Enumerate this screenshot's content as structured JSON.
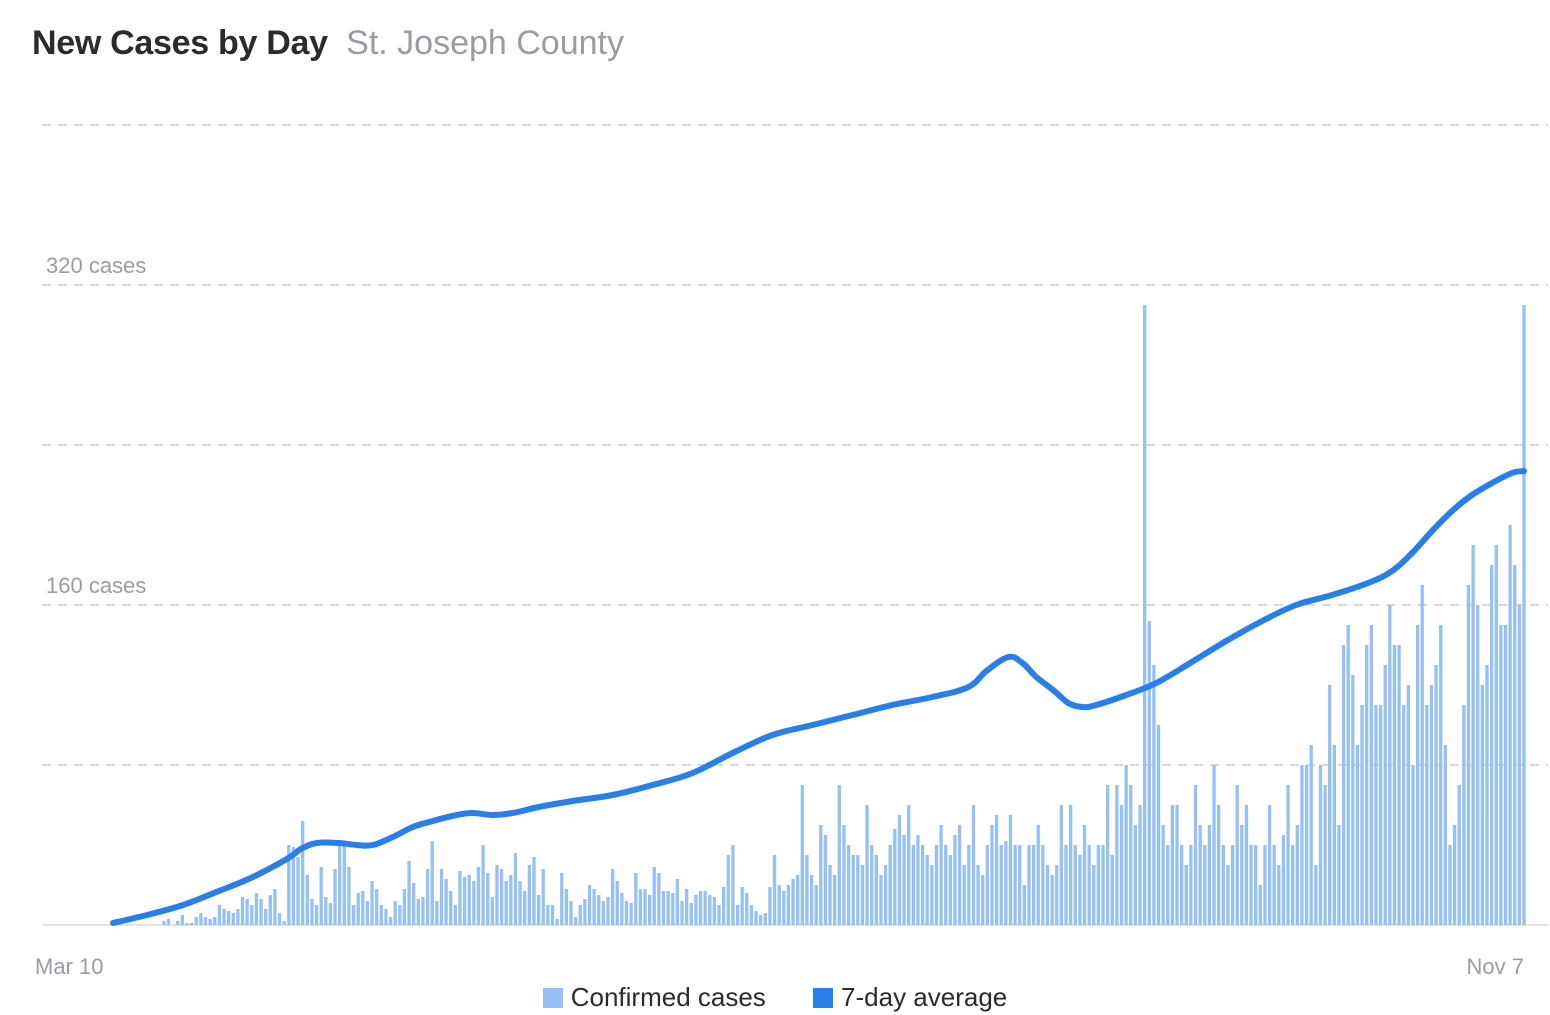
{
  "header": {
    "title": "New Cases by Day",
    "subtitle": "St. Joseph County"
  },
  "colors": {
    "bar": "#97c1f3",
    "line": "#2a7ee8",
    "grid": "#cccccc",
    "label": "#9a9ca3"
  },
  "chart_data": {
    "type": "bar",
    "title": "New Cases by Day",
    "subtitle": "St. Joseph County",
    "ylim": [
      0,
      400
    ],
    "y_ticks": [
      {
        "value": 0,
        "label": ""
      },
      {
        "value": 80,
        "label": ""
      },
      {
        "value": 160,
        "label": "160 cases"
      },
      {
        "value": 240,
        "label": ""
      },
      {
        "value": 320,
        "label": "320 cases"
      },
      {
        "value": 400,
        "label": ""
      }
    ],
    "x_start_label": "Mar 10",
    "x_end_label": "Nov 7",
    "grid": "horizontal dashed",
    "legend_position": "bottom",
    "series": [
      {
        "name": "Confirmed cases",
        "type": "bar",
        "values": [
          1,
          0,
          0,
          0,
          0,
          0,
          0,
          0,
          0,
          0,
          0,
          2,
          3,
          0,
          2,
          5,
          1,
          1,
          4,
          6,
          4,
          3,
          4,
          10,
          8,
          7,
          6,
          8,
          14,
          13,
          10,
          16,
          13,
          8,
          15,
          18,
          6,
          2,
          40,
          39,
          34,
          52,
          25,
          13,
          10,
          29,
          14,
          11,
          28,
          42,
          40,
          29,
          10,
          16,
          17,
          12,
          22,
          18,
          10,
          8,
          4,
          12,
          10,
          18,
          32,
          21,
          13,
          14,
          28,
          42,
          12,
          28,
          23,
          17,
          10,
          27,
          24,
          25,
          22,
          29,
          40,
          26,
          14,
          30,
          28,
          22,
          25,
          36,
          22,
          17,
          30,
          34,
          15,
          28,
          10,
          10,
          3,
          26,
          18,
          12,
          4,
          10,
          13,
          20,
          18,
          15,
          12,
          14,
          28,
          22,
          16,
          12,
          11,
          26,
          18,
          18,
          15,
          29,
          26,
          17,
          17,
          16,
          23,
          12,
          18,
          11,
          15,
          17,
          17,
          15,
          14,
          10,
          19,
          35,
          40,
          10,
          19,
          16,
          10,
          7,
          5,
          6,
          19,
          35,
          20,
          17,
          20,
          23,
          25,
          70,
          35,
          25,
          20,
          50,
          45,
          30,
          25,
          70,
          50,
          40,
          35,
          35,
          30,
          60,
          40,
          35,
          25,
          30,
          40,
          48,
          55,
          45,
          60,
          40,
          45,
          40,
          35,
          30,
          40,
          50,
          40,
          35,
          45,
          50,
          30,
          40,
          60,
          30,
          25,
          40,
          50,
          55,
          40,
          42,
          55,
          40,
          40,
          20,
          40,
          40,
          50,
          40,
          30,
          25,
          30,
          60,
          40,
          60,
          40,
          35,
          50,
          40,
          30,
          40,
          40,
          70,
          35,
          70,
          60,
          80,
          70,
          50,
          60,
          310,
          152,
          130,
          100,
          50,
          40,
          60,
          60,
          40,
          30,
          40,
          70,
          50,
          40,
          50,
          80,
          60,
          40,
          30,
          40,
          70,
          50,
          60,
          40,
          40,
          20,
          40,
          60,
          40,
          30,
          45,
          70,
          40,
          50,
          80,
          80,
          90,
          30,
          80,
          70,
          120,
          90,
          50,
          140,
          150,
          125,
          90,
          110,
          140,
          150,
          110,
          110,
          130,
          160,
          140,
          140,
          110,
          120,
          80,
          150,
          170,
          110,
          120,
          130,
          150,
          90,
          40,
          50,
          70,
          110,
          170,
          190,
          160,
          120,
          130,
          180,
          190,
          150,
          150,
          200,
          180,
          160,
          310
        ]
      },
      {
        "name": "7-day average",
        "type": "line",
        "values": [
          [
            0,
            1
          ],
          [
            17,
            5
          ],
          [
            35,
            10
          ],
          [
            53,
            17
          ],
          [
            70,
            24
          ],
          [
            87,
            33
          ],
          [
            94,
            38
          ],
          [
            102,
            41
          ],
          [
            113,
            41
          ],
          [
            122,
            40
          ],
          [
            130,
            40
          ],
          [
            140,
            44
          ],
          [
            150,
            49
          ],
          [
            160,
            52
          ],
          [
            172,
            55
          ],
          [
            180,
            56
          ],
          [
            190,
            55
          ],
          [
            200,
            56
          ],
          [
            213,
            59
          ],
          [
            230,
            62
          ],
          [
            250,
            65
          ],
          [
            270,
            70
          ],
          [
            290,
            76
          ],
          [
            310,
            86
          ],
          [
            330,
            95
          ],
          [
            350,
            100
          ],
          [
            370,
            105
          ],
          [
            390,
            110
          ],
          [
            410,
            114
          ],
          [
            428,
            119
          ],
          [
            437,
            127
          ],
          [
            448,
            134
          ],
          [
            455,
            131
          ],
          [
            462,
            124
          ],
          [
            471,
            117
          ],
          [
            478,
            111
          ],
          [
            485,
            109
          ],
          [
            492,
            110
          ],
          [
            507,
            115
          ],
          [
            522,
            121
          ],
          [
            539,
            131
          ],
          [
            557,
            142
          ],
          [
            575,
            152
          ],
          [
            592,
            160
          ],
          [
            610,
            165
          ],
          [
            628,
            171
          ],
          [
            640,
            177
          ],
          [
            650,
            186
          ],
          [
            660,
            197
          ],
          [
            670,
            207
          ],
          [
            680,
            215
          ],
          [
            690,
            221
          ],
          [
            700,
            226
          ],
          [
            706,
            227
          ]
        ]
      }
    ]
  },
  "legend": {
    "confirmed_label": "Confirmed cases",
    "avg_label": "7-day average"
  }
}
